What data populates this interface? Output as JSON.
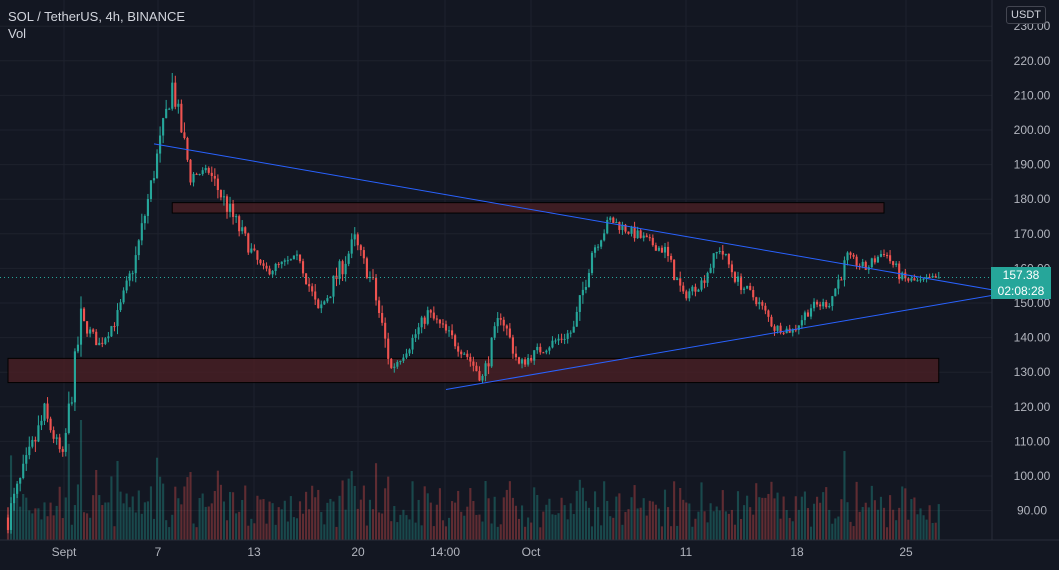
{
  "legend": {
    "symbol": "SOL / TetherUS, 4h, BINANCE",
    "volume": "Vol"
  },
  "axis": {
    "currency": "USDT",
    "price_ticks": [
      "230.00",
      "220.00",
      "210.00",
      "200.00",
      "190.00",
      "180.00",
      "170.00",
      "160.00",
      "150.00",
      "140.00",
      "130.00",
      "120.00",
      "110.00",
      "100.00",
      "90.00"
    ],
    "time_ticks": [
      "Sept",
      "7",
      "13",
      "20",
      "14:00",
      "Oct",
      "11",
      "18",
      "25"
    ]
  },
  "last_price": {
    "price": "157.38",
    "countdown": "02:08:28"
  },
  "colors": {
    "up": "#26a69a",
    "down": "#ef5350",
    "trendline": "#2962ff",
    "zone_fill": "#4a1f24",
    "last_badge": "#26a69a",
    "background": "#131722"
  },
  "chart_data": {
    "type": "candlestick",
    "symbol": "SOL / TetherUS",
    "interval": "4h",
    "exchange": "BINANCE",
    "ylim": [
      85,
      232
    ],
    "x_ticks": [
      "Sept",
      "7",
      "13",
      "20",
      "14:00",
      "Oct",
      "11",
      "18",
      "25"
    ],
    "anchor_closes": [
      {
        "x": "Aug 31",
        "close": 88
      },
      {
        "x": "Sep 2",
        "close": 118
      },
      {
        "x": "Sep 3",
        "close": 105
      },
      {
        "x": "Sep 4",
        "close": 145
      },
      {
        "x": "Sep 5",
        "close": 138
      },
      {
        "x": "Sep 6",
        "close": 146
      },
      {
        "x": "Sep 7",
        "close": 163
      },
      {
        "x": "Sep 8",
        "close": 188
      },
      {
        "x": "Sep 9",
        "close": 213
      },
      {
        "x": "Sep 10",
        "close": 187
      },
      {
        "x": "Sep 11",
        "close": 188
      },
      {
        "x": "Sep 13",
        "close": 168
      },
      {
        "x": "Sep 14",
        "close": 159
      },
      {
        "x": "Sep 16",
        "close": 163
      },
      {
        "x": "Sep 17",
        "close": 147
      },
      {
        "x": "Sep 19",
        "close": 168
      },
      {
        "x": "Sep 20",
        "close": 155
      },
      {
        "x": "Sep 21",
        "close": 131
      },
      {
        "x": "Sep 22",
        "close": 138
      },
      {
        "x": "Sep 23",
        "close": 147
      },
      {
        "x": "Sep 25",
        "close": 136
      },
      {
        "x": "Sep 26",
        "close": 128
      },
      {
        "x": "Sep 27",
        "close": 147
      },
      {
        "x": "Sep 28",
        "close": 132
      },
      {
        "x": "Sep 29",
        "close": 136
      },
      {
        "x": "Oct 1",
        "close": 142
      },
      {
        "x": "Oct 2",
        "close": 165
      },
      {
        "x": "Oct 3",
        "close": 174
      },
      {
        "x": "Oct 5",
        "close": 168
      },
      {
        "x": "Oct 6",
        "close": 165
      },
      {
        "x": "Oct 7",
        "close": 152
      },
      {
        "x": "Oct 8",
        "close": 156
      },
      {
        "x": "Oct 9",
        "close": 166
      },
      {
        "x": "Oct 10",
        "close": 156
      },
      {
        "x": "Oct 11",
        "close": 151
      },
      {
        "x": "Oct 12",
        "close": 143
      },
      {
        "x": "Oct 13",
        "close": 142
      },
      {
        "x": "Oct 14",
        "close": 149
      },
      {
        "x": "Oct 15",
        "close": 150
      },
      {
        "x": "Oct 16",
        "close": 163
      },
      {
        "x": "Oct 17",
        "close": 160
      },
      {
        "x": "Oct 18",
        "close": 165
      },
      {
        "x": "Oct 19",
        "close": 157
      },
      {
        "x": "Oct 20",
        "close": 156
      },
      {
        "x": "Oct 21",
        "close": 157.38
      }
    ],
    "support_zones": [
      {
        "from": "Sep 9",
        "to": "Oct 18",
        "low": 176,
        "high": 179
      },
      {
        "from": "Aug 31",
        "to": "Oct 21",
        "low": 127,
        "high": 134
      }
    ],
    "trendlines": [
      {
        "from": {
          "x": "Sep 8",
          "y": 196
        },
        "to": {
          "x": "Oct 27",
          "y": 151
        }
      },
      {
        "from": {
          "x": "Sep 24",
          "y": 125
        },
        "to": {
          "x": "Oct 27",
          "y": 155
        }
      }
    ],
    "last_price": 157.38,
    "volume_series": "Vol"
  }
}
